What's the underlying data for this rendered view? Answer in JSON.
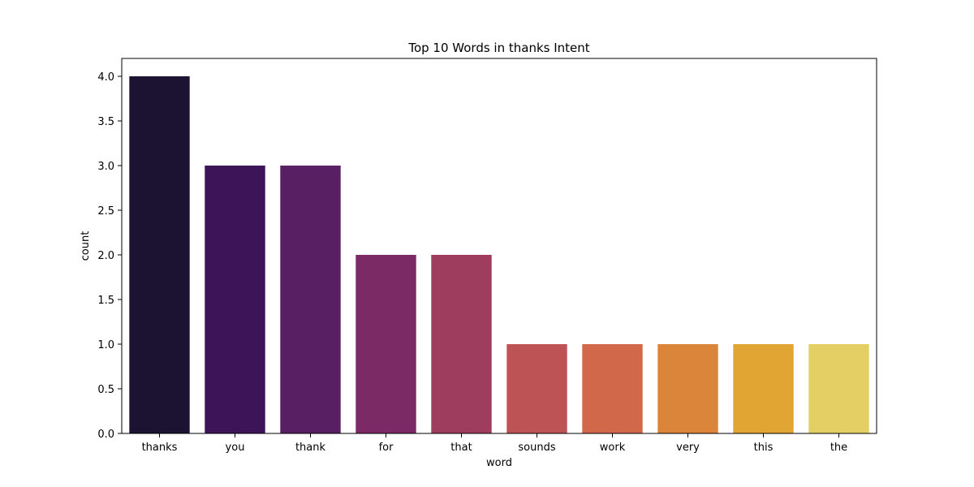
{
  "chart_data": {
    "type": "bar",
    "title": "Top 10 Words in thanks Intent",
    "xlabel": "word",
    "ylabel": "count",
    "categories": [
      "thanks",
      "you",
      "thank",
      "for",
      "that",
      "sounds",
      "work",
      "very",
      "this",
      "the"
    ],
    "values": [
      4,
      3,
      3,
      2,
      2,
      1,
      1,
      1,
      1,
      1
    ],
    "colors": [
      "#1b1331",
      "#3c1457",
      "#591f63",
      "#7b2a66",
      "#9e3d5e",
      "#bd5355",
      "#d2684a",
      "#db853a",
      "#e0a533",
      "#e3cf63"
    ],
    "ylim": [
      0,
      4.2
    ],
    "yticks": [
      "0.0",
      "0.5",
      "1.0",
      "1.5",
      "2.0",
      "2.5",
      "3.0",
      "3.5",
      "4.0"
    ],
    "grid": false,
    "legend": false
  }
}
